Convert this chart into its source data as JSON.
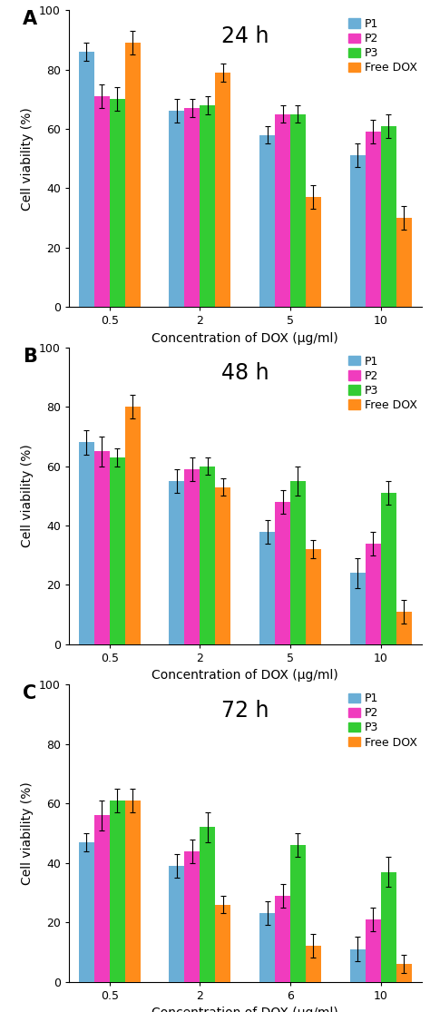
{
  "panels": [
    {
      "label": "A",
      "time": "24 h",
      "x_labels": [
        "0.5",
        "2",
        "5",
        "10"
      ],
      "xlabel": "Concentration of DOX (μg/ml)",
      "ylabel": "Cell viability (%)",
      "ylim": [
        0,
        100
      ],
      "yticks": [
        0,
        20,
        40,
        60,
        80,
        100
      ],
      "series": {
        "P1": {
          "values": [
            86,
            66,
            58,
            51
          ],
          "errors": [
            3,
            4,
            3,
            4
          ]
        },
        "P2": {
          "values": [
            71,
            67,
            65,
            59
          ],
          "errors": [
            4,
            3,
            3,
            4
          ]
        },
        "P3": {
          "values": [
            70,
            68,
            65,
            61
          ],
          "errors": [
            4,
            3,
            3,
            4
          ]
        },
        "Free DOX": {
          "values": [
            89,
            79,
            37,
            30
          ],
          "errors": [
            4,
            3,
            4,
            4
          ]
        }
      }
    },
    {
      "label": "B",
      "time": "48 h",
      "x_labels": [
        "0.5",
        "2",
        "5",
        "10"
      ],
      "xlabel": "Concentration of DOX (μg/ml)",
      "ylabel": "Cell viability (%)",
      "ylim": [
        0,
        100
      ],
      "yticks": [
        0,
        20,
        40,
        60,
        80,
        100
      ],
      "series": {
        "P1": {
          "values": [
            68,
            55,
            38,
            24
          ],
          "errors": [
            4,
            4,
            4,
            5
          ]
        },
        "P2": {
          "values": [
            65,
            59,
            48,
            34
          ],
          "errors": [
            5,
            4,
            4,
            4
          ]
        },
        "P3": {
          "values": [
            63,
            60,
            55,
            51
          ],
          "errors": [
            3,
            3,
            5,
            4
          ]
        },
        "Free DOX": {
          "values": [
            80,
            53,
            32,
            11
          ],
          "errors": [
            4,
            3,
            3,
            4
          ]
        }
      }
    },
    {
      "label": "C",
      "time": "72 h",
      "x_labels": [
        "0.5",
        "2",
        "6",
        "10"
      ],
      "xlabel": "Concentration of DOX (μg/ml)",
      "ylabel": "Cell viability (%)",
      "ylim": [
        0,
        100
      ],
      "yticks": [
        0,
        20,
        40,
        60,
        80,
        100
      ],
      "series": {
        "P1": {
          "values": [
            47,
            39,
            23,
            11
          ],
          "errors": [
            3,
            4,
            4,
            4
          ]
        },
        "P2": {
          "values": [
            56,
            44,
            29,
            21
          ],
          "errors": [
            5,
            4,
            4,
            4
          ]
        },
        "P3": {
          "values": [
            61,
            52,
            46,
            37
          ],
          "errors": [
            4,
            5,
            4,
            5
          ]
        },
        "Free DOX": {
          "values": [
            61,
            26,
            12,
            6
          ],
          "errors": [
            4,
            3,
            4,
            3
          ]
        }
      }
    }
  ],
  "colors": {
    "P1": "#6aaed6",
    "P2": "#f03cbe",
    "P3": "#33cc33",
    "Free DOX": "#ff8c1a"
  },
  "legend_order": [
    "P1",
    "P2",
    "P3",
    "Free DOX"
  ],
  "bar_width": 0.17,
  "label_fontsize": 15,
  "axis_label_fontsize": 10,
  "tick_fontsize": 9,
  "time_fontsize": 17,
  "legend_fontsize": 9
}
